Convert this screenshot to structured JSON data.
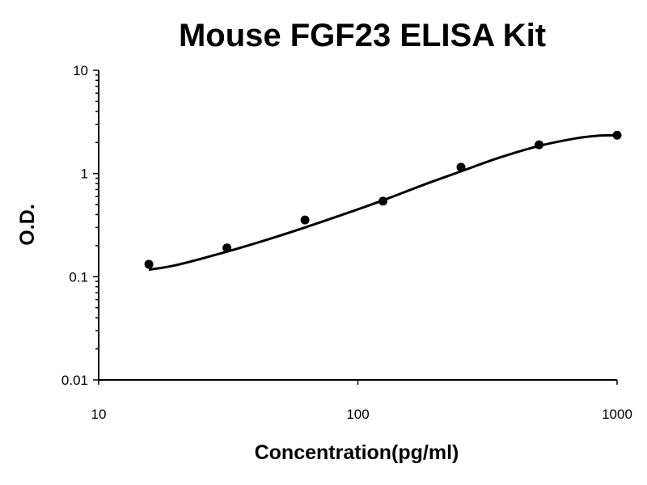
{
  "chart_data": {
    "type": "scatter",
    "title": "Mouse FGF23 ELISA Kit",
    "xlabel": "Concentration(pg/ml)",
    "ylabel": "O.D.",
    "x_scale": "log",
    "y_scale": "log",
    "xlim": [
      10,
      1000
    ],
    "ylim": [
      0.01,
      10
    ],
    "x_ticks": [
      10,
      100,
      1000
    ],
    "x_tick_labels": [
      "10",
      "100",
      "1000"
    ],
    "y_ticks": [
      0.01,
      0.1,
      1,
      10
    ],
    "y_tick_labels": [
      "0.01",
      "0.1",
      "1",
      "10"
    ],
    "grid": false,
    "series": [
      {
        "x": [
          15.625,
          31.25,
          62.5,
          125,
          250,
          500,
          1000
        ],
        "y": [
          0.132,
          0.19,
          0.355,
          0.54,
          1.15,
          1.9,
          2.35
        ]
      }
    ],
    "fit_curve": {
      "x": [
        15.625,
        20,
        31.25,
        45,
        62.5,
        90,
        125,
        180,
        250,
        350,
        500,
        700,
        850,
        1000
      ],
      "y": [
        0.117,
        0.13,
        0.175,
        0.23,
        0.3,
        0.41,
        0.55,
        0.78,
        1.05,
        1.42,
        1.85,
        2.2,
        2.33,
        2.35
      ]
    },
    "colors": {
      "points": "#000000",
      "curve": "#000000",
      "axes": "#000000"
    }
  }
}
